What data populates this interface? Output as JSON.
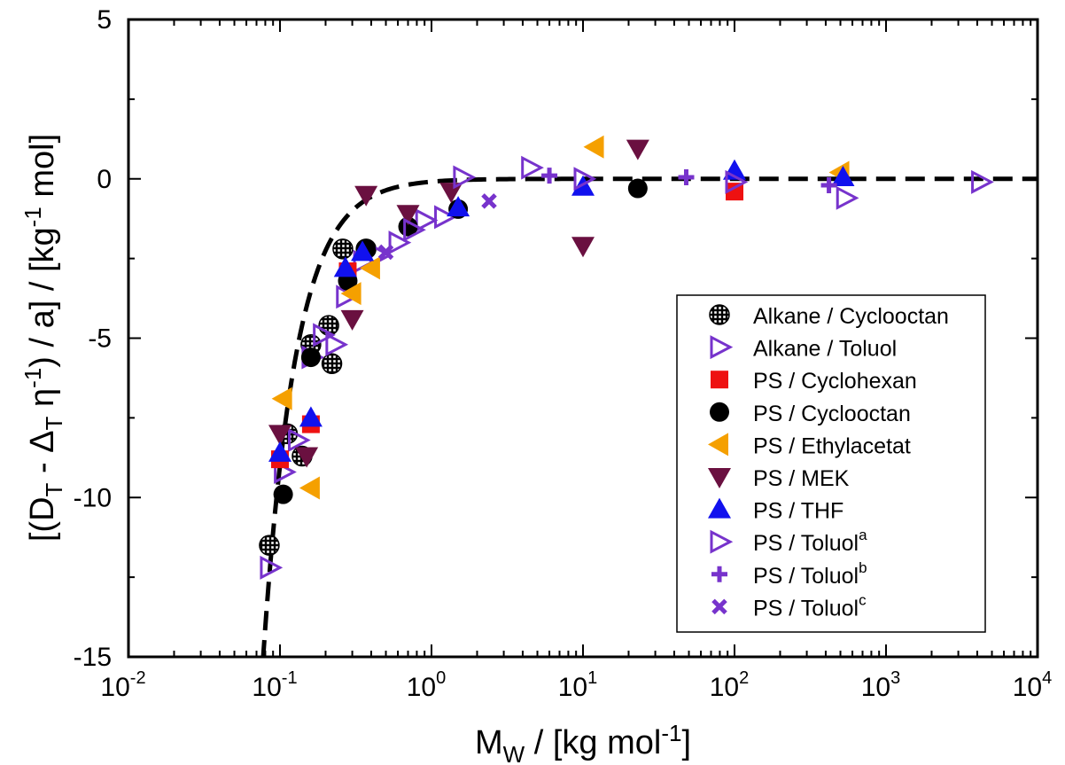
{
  "chart_data": {
    "type": "scatter",
    "x_scale": "log",
    "xlim": [
      0.01,
      10000
    ],
    "ylim": [
      -15,
      5
    ],
    "grid": false,
    "legend_position": "bottom-right",
    "xlabel": {
      "main": "M",
      "sub": "W",
      "tail": " / [kg mol",
      "sup": "-1",
      "end": "]"
    },
    "ylabel": {
      "p1": "[(D",
      "s1": "T",
      "p2": " - Δ",
      "s2": "T",
      "p3": " η",
      "s3": "-1",
      "p4": ") / a] / [kg",
      "s4": "-1",
      "p5": " mol]"
    },
    "x_tick_labels": [
      {
        "base": "10",
        "exp": "-2"
      },
      {
        "base": "10",
        "exp": "-1"
      },
      {
        "base": "10",
        "exp": "0"
      },
      {
        "base": "10",
        "exp": "1"
      },
      {
        "base": "10",
        "exp": "2"
      },
      {
        "base": "10",
        "exp": "3"
      },
      {
        "base": "10",
        "exp": "4"
      }
    ],
    "y_ticks": [
      5,
      0,
      -5,
      -10,
      -15
    ],
    "y_tick_labels": [
      "5",
      "0",
      "-5",
      "-10",
      "-15"
    ],
    "fit_curve": {
      "style": "dashed",
      "color": "#000000",
      "model": "-A/x^2",
      "A": 0.09,
      "x_range": [
        0.075,
        10000
      ]
    },
    "series": [
      {
        "name": "Alkane / Cyclooctan",
        "marker": "hatched-circle",
        "color": "#000000",
        "points": [
          [
            0.085,
            -11.5
          ],
          [
            0.112,
            -8.0
          ],
          [
            0.14,
            -8.7
          ],
          [
            0.16,
            -5.2
          ],
          [
            0.21,
            -4.6
          ],
          [
            0.22,
            -5.8
          ],
          [
            0.26,
            -2.2
          ],
          [
            0.37,
            -2.2
          ]
        ]
      },
      {
        "name": "Alkane / Toluol",
        "marker": "triangle-right-open",
        "color": "#7733cc",
        "points": [
          [
            0.085,
            -12.2
          ],
          [
            0.105,
            -9.2
          ],
          [
            0.13,
            -8.2
          ],
          [
            0.16,
            -5.6
          ],
          [
            0.19,
            -4.9
          ],
          [
            0.23,
            -5.2
          ],
          [
            0.27,
            -3.7
          ],
          [
            0.35,
            -2.6
          ],
          [
            0.45,
            -2.4
          ],
          [
            0.6,
            -2.0
          ],
          [
            0.9,
            -1.3
          ],
          [
            1.2,
            -1.2
          ]
        ]
      },
      {
        "name": "PS / Cyclohexan",
        "marker": "square",
        "color": "#ee1111",
        "points": [
          [
            0.1,
            -8.8
          ],
          [
            0.16,
            -7.7
          ],
          [
            0.28,
            -2.9
          ],
          [
            100,
            -0.4
          ]
        ]
      },
      {
        "name": "PS / Cyclooctan",
        "marker": "circle",
        "color": "#000000",
        "points": [
          [
            0.105,
            -9.9
          ],
          [
            0.16,
            -5.6
          ],
          [
            0.28,
            -3.2
          ],
          [
            0.37,
            -2.2
          ],
          [
            0.7,
            -1.5
          ],
          [
            1.5,
            -0.95
          ],
          [
            23,
            -0.3
          ]
        ]
      },
      {
        "name": "PS / Ethylacetat",
        "marker": "triangle-left",
        "color": "#f5a000",
        "points": [
          [
            0.105,
            -6.9
          ],
          [
            0.16,
            -9.7
          ],
          [
            0.3,
            -3.6
          ],
          [
            0.4,
            -2.8
          ],
          [
            12,
            1.0
          ],
          [
            500,
            0.2
          ]
        ]
      },
      {
        "name": "PS / MEK",
        "marker": "triangle-down",
        "color": "#6a1040",
        "points": [
          [
            0.1,
            -8.0
          ],
          [
            0.15,
            -8.7
          ],
          [
            0.3,
            -4.4
          ],
          [
            0.37,
            -0.5
          ],
          [
            0.7,
            -1.1
          ],
          [
            1.35,
            -0.4
          ],
          [
            10,
            -2.1
          ],
          [
            23,
            0.95
          ]
        ]
      },
      {
        "name": "PS / THF",
        "marker": "triangle-up",
        "color": "#1111ee",
        "points": [
          [
            0.1,
            -8.6
          ],
          [
            0.16,
            -7.5
          ],
          [
            0.27,
            -2.8
          ],
          [
            0.35,
            -2.3
          ],
          [
            1.5,
            -0.9
          ],
          [
            10,
            -0.25
          ],
          [
            100,
            0.25
          ],
          [
            520,
            0.05
          ]
        ]
      },
      {
        "name": "PS / Toluol",
        "sup": "a",
        "marker": "triangle-right-open",
        "color": "#7733cc",
        "points": [
          [
            0.75,
            -1.6
          ],
          [
            1.6,
            0.05
          ],
          [
            4.5,
            0.35
          ],
          [
            10,
            0.0
          ],
          [
            100,
            -0.1
          ],
          [
            540,
            -0.6
          ],
          [
            4200,
            -0.1
          ]
        ]
      },
      {
        "name": "PS / Toluol",
        "sup": "b",
        "marker": "plus",
        "color": "#7733cc",
        "points": [
          [
            6,
            0.1
          ],
          [
            48,
            0.05
          ],
          [
            420,
            -0.2
          ]
        ]
      },
      {
        "name": "PS / Toluol",
        "sup": "c",
        "marker": "cross",
        "color": "#7733cc",
        "points": [
          [
            0.5,
            -2.3
          ],
          [
            2.4,
            -0.7
          ]
        ]
      }
    ]
  }
}
